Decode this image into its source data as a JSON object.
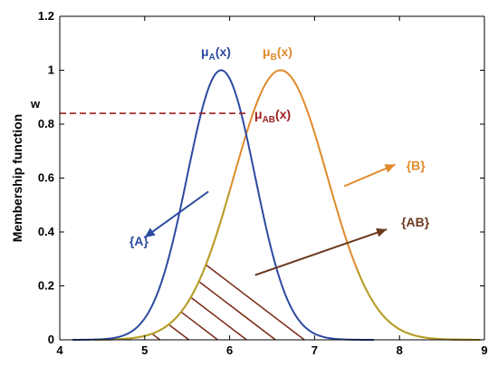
{
  "chart_data": {
    "type": "line",
    "ylabel": "Membership function",
    "xlim": [
      4,
      9
    ],
    "ylim": [
      0,
      1.2
    ],
    "xticks": [
      "4",
      "5",
      "6",
      "7",
      "8",
      "9"
    ],
    "yticks": [
      "0",
      "0.2",
      "0.4",
      "0.6",
      "0.8",
      "1",
      "1.2"
    ],
    "series": [
      {
        "key": "A",
        "mean": 5.9,
        "sigma": 0.4,
        "range": [
          4.15,
          7.7
        ],
        "color": "#2b4aa0"
      },
      {
        "key": "B",
        "mean": 6.6,
        "sigma": 0.55,
        "range": [
          4.4,
          8.95
        ],
        "color": "#e08a2a"
      }
    ],
    "threshold": {
      "label": "w",
      "value": 0.84,
      "x_start": 4,
      "x_end": 6.2,
      "color": "#9b2020"
    },
    "curve_labels": {
      "a_mu": "μ",
      "a_sub": "A",
      "a_arg": "(x)",
      "b_mu": "μ",
      "b_sub": "B",
      "b_arg": "(x)",
      "ab_mu": "μ",
      "ab_sub": "AB",
      "ab_arg": "(x)"
    },
    "annotations": [
      {
        "key": "A",
        "text": "{A}",
        "color": "#2b4aa0",
        "from": [
          5.75,
          0.55
        ],
        "to": [
          5.0,
          0.38
        ],
        "label_at": [
          4.82,
          0.35
        ]
      },
      {
        "key": "B",
        "text": "{B}",
        "color": "#e08a2a",
        "from": [
          7.35,
          0.57
        ],
        "to": [
          7.95,
          0.65
        ],
        "label_at": [
          8.08,
          0.63
        ]
      },
      {
        "key": "AB",
        "text": "{AB}",
        "color": "#6b3a1f",
        "from": [
          6.3,
          0.24
        ],
        "to": [
          7.85,
          0.41
        ],
        "label_at": [
          8.02,
          0.42
        ]
      }
    ],
    "hatch": {
      "spacing": 0.34,
      "slope": -0.24,
      "color": "#7a2a14"
    },
    "grid": false
  }
}
